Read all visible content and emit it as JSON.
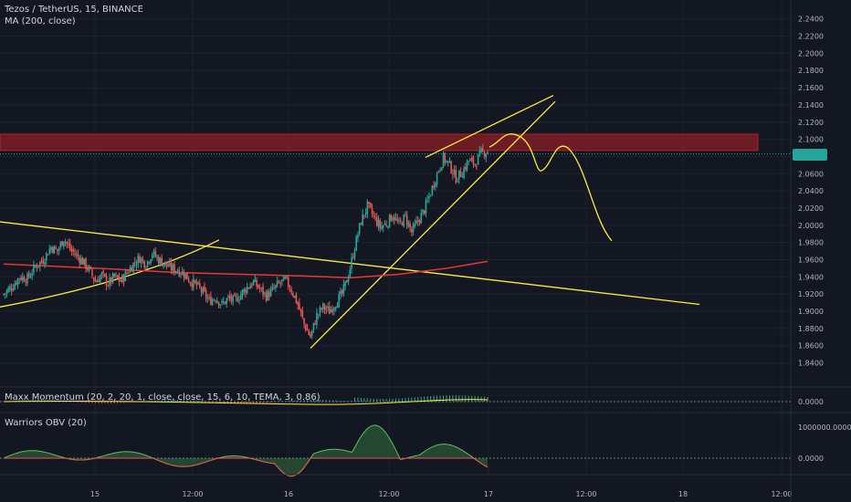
{
  "header": {
    "symbol_line": "Tezos / TetherUS, 15, BINANCE",
    "ma_line": "MA (200, close)"
  },
  "indicators": {
    "momentum_label": "Maxx Momentum (20, 2, 20, 1, close, close, 15, 6, 10, TEMA, 3, 0.86)",
    "obv_label": "Warriors OBV (20)",
    "momentum_zero": "0.0000",
    "obv_zero": "0.0000",
    "obv_top": "1000000.0000"
  },
  "colors": {
    "background": "#131722",
    "up": "#26a69a",
    "down": "#ef5350",
    "ma": "#e53935",
    "drawing": "#ffeb3b",
    "resistance_zone": "#7f1d24"
  },
  "chart_data": {
    "type": "candlestick",
    "title": "Tezos / TetherUS, 15, BINANCE",
    "series": [
      {
        "name": "MA (200, close)"
      }
    ],
    "y_ticks": [
      "2.2400",
      "2.2200",
      "2.2000",
      "2.1800",
      "2.1600",
      "2.1400",
      "2.1200",
      "2.1000",
      "2.0800",
      "2.0600",
      "2.0400",
      "2.0200",
      "2.0000",
      "1.9800",
      "1.9600",
      "1.9400",
      "1.9200",
      "1.9000",
      "1.8800",
      "1.8600",
      "1.8400"
    ],
    "ylim": [
      1.83,
      2.245
    ],
    "x_ticks": [
      "15",
      "12:00",
      "16",
      "12:00",
      "17",
      "12:00",
      "18",
      "12:00"
    ],
    "last_price": 2.083,
    "resistance_zone": [
      2.087,
      2.106
    ],
    "price_path": [
      [
        0,
        1.92
      ],
      [
        5,
        1.928
      ],
      [
        10,
        1.94
      ],
      [
        15,
        1.938
      ],
      [
        20,
        1.952
      ],
      [
        25,
        1.96
      ],
      [
        30,
        1.975
      ],
      [
        34,
        1.97
      ],
      [
        38,
        1.985
      ],
      [
        42,
        1.972
      ],
      [
        46,
        1.965
      ],
      [
        50,
        1.958
      ],
      [
        54,
        1.948
      ],
      [
        58,
        1.935
      ],
      [
        62,
        1.942
      ],
      [
        66,
        1.932
      ],
      [
        70,
        1.94
      ],
      [
        74,
        1.935
      ],
      [
        78,
        1.945
      ],
      [
        82,
        1.955
      ],
      [
        86,
        1.962
      ],
      [
        90,
        1.955
      ],
      [
        94,
        1.968
      ],
      [
        98,
        1.96
      ],
      [
        102,
        1.955
      ],
      [
        106,
        1.95
      ],
      [
        110,
        1.948
      ],
      [
        114,
        1.944
      ],
      [
        118,
        1.935
      ],
      [
        122,
        1.93
      ],
      [
        126,
        1.922
      ],
      [
        130,
        1.912
      ],
      [
        134,
        1.916
      ],
      [
        138,
        1.908
      ],
      [
        142,
        1.915
      ],
      [
        146,
        1.912
      ],
      [
        150,
        1.92
      ],
      [
        154,
        1.928
      ],
      [
        158,
        1.934
      ],
      [
        162,
        1.926
      ],
      [
        166,
        1.918
      ],
      [
        170,
        1.924
      ],
      [
        174,
        1.932
      ],
      [
        178,
        1.936
      ],
      [
        182,
        1.925
      ],
      [
        186,
        1.908
      ],
      [
        190,
        1.885
      ],
      [
        194,
        1.87
      ],
      [
        198,
        1.895
      ],
      [
        202,
        1.905
      ],
      [
        206,
        1.9
      ],
      [
        210,
        1.91
      ],
      [
        214,
        1.92
      ],
      [
        218,
        1.942
      ],
      [
        222,
        1.975
      ],
      [
        226,
        2.005
      ],
      [
        230,
        2.022
      ],
      [
        234,
        2.01
      ],
      [
        238,
        1.998
      ],
      [
        242,
        2.002
      ],
      [
        246,
        2.012
      ],
      [
        250,
        2.0
      ],
      [
        254,
        2.01
      ],
      [
        258,
        1.992
      ],
      [
        262,
        2.005
      ],
      [
        266,
        2.018
      ],
      [
        270,
        2.038
      ],
      [
        274,
        2.06
      ],
      [
        278,
        2.078
      ],
      [
        282,
        2.07
      ],
      [
        286,
        2.055
      ],
      [
        290,
        2.062
      ],
      [
        294,
        2.075
      ],
      [
        298,
        2.072
      ],
      [
        302,
        2.084
      ],
      [
        306,
        2.086
      ]
    ],
    "ma_path": [
      [
        0,
        1.955
      ],
      [
        60,
        1.95
      ],
      [
        110,
        1.945
      ],
      [
        150,
        1.943
      ],
      [
        190,
        1.941
      ],
      [
        220,
        1.939
      ],
      [
        250,
        1.943
      ],
      [
        280,
        1.95
      ],
      [
        306,
        1.958
      ]
    ],
    "momentum_zero_value": 0,
    "obv_zero_value": 0
  }
}
